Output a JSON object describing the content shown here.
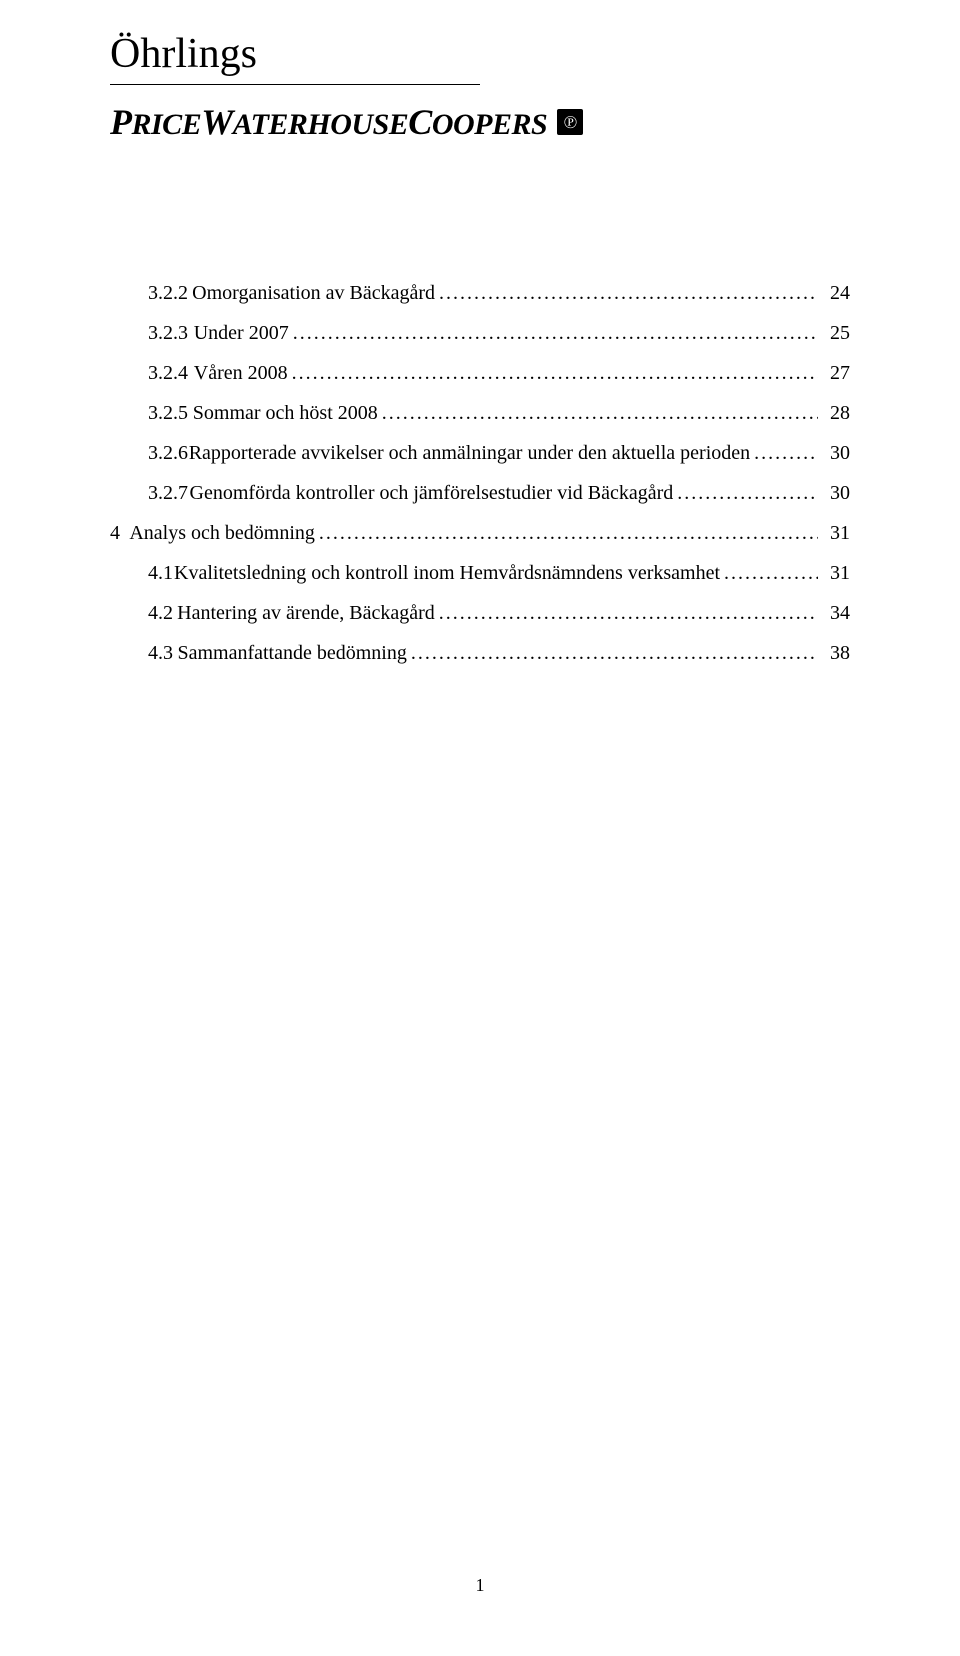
{
  "logo": {
    "line1": "Öhrlings",
    "line2_html_parts": [
      "P",
      "RICE",
      "W",
      "ATERHOUSE",
      "C",
      "OOPERS"
    ],
    "badge": "℗"
  },
  "toc": [
    {
      "indent": 1,
      "num": "3.2.2",
      "title": "Omorganisation av Bäckagård",
      "page": "24"
    },
    {
      "indent": 1,
      "num": "3.2.3",
      "title": "Under 2007",
      "page": "25"
    },
    {
      "indent": 1,
      "num": "3.2.4",
      "title": "Våren 2008",
      "page": "27"
    },
    {
      "indent": 1,
      "num": "3.2.5",
      "title": "Sommar och höst 2008",
      "page": "28"
    },
    {
      "indent": 1,
      "num": "3.2.6",
      "title": "Rapporterade avvikelser och anmälningar under den aktuella perioden",
      "page": "30"
    },
    {
      "indent": 1,
      "num": "3.2.7",
      "title": "Genomförda kontroller och jämförelsestudier vid Bäckagård",
      "page": "30"
    },
    {
      "indent": 0,
      "num": "4",
      "title": "Analys och bedömning",
      "page": "31"
    },
    {
      "indent": 1,
      "num": "4.1",
      "title": "Kvalitetsledning och kontroll inom Hemvårdsnämndens verksamhet",
      "page": "31"
    },
    {
      "indent": 1,
      "num": "4.2",
      "title": "Hantering av ärende, Bäckagård",
      "page": "34"
    },
    {
      "indent": 1,
      "num": "4.3",
      "title": "Sammanfattande bedömning",
      "page": "38"
    }
  ],
  "page_number": "1",
  "colors": {
    "text": "#000000",
    "background": "#ffffff"
  },
  "fonts": {
    "body": "Times New Roman",
    "body_size_pt": 15,
    "logo1_size_pt": 32,
    "logo2_size_pt": 22
  }
}
